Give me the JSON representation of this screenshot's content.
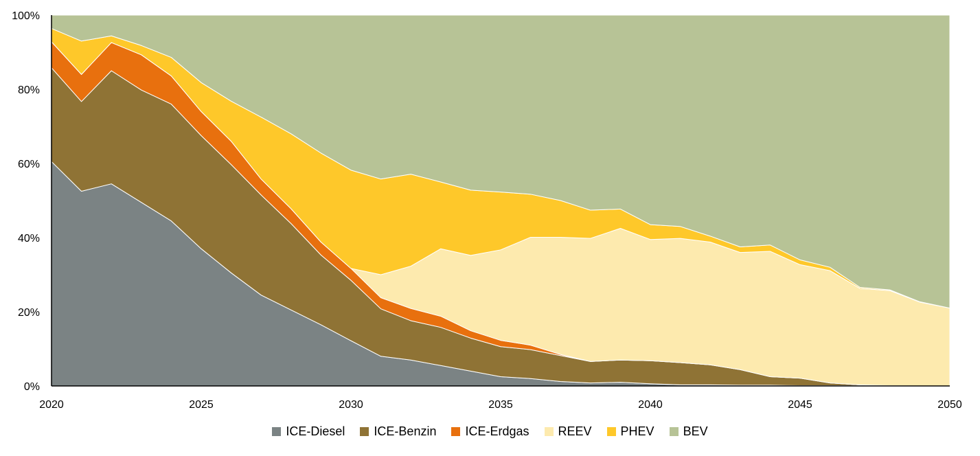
{
  "chart_data": {
    "type": "area",
    "stacked": true,
    "title": "",
    "xlabel": "",
    "ylabel": "",
    "x": [
      2020,
      2021,
      2022,
      2023,
      2024,
      2025,
      2026,
      2027,
      2028,
      2029,
      2030,
      2031,
      2032,
      2033,
      2034,
      2035,
      2036,
      2037,
      2038,
      2039,
      2040,
      2041,
      2042,
      2043,
      2044,
      2045,
      2046,
      2047,
      2048,
      2049,
      2050
    ],
    "x_ticks": [
      2020,
      2025,
      2030,
      2035,
      2040,
      2045,
      2050
    ],
    "x_tick_labels": [
      "2020",
      "2025",
      "2030",
      "2035",
      "2040",
      "2045",
      "2050"
    ],
    "y_ticks": [
      0,
      20,
      40,
      60,
      80,
      100
    ],
    "y_tick_labels": [
      "0%",
      "20%",
      "40%",
      "60%",
      "80%",
      "100%"
    ],
    "ylim": [
      0,
      100
    ],
    "xlim": [
      2020,
      2050
    ],
    "grid": false,
    "legend_position": "bottom",
    "series": [
      {
        "name": "ICE-Diesel",
        "color": "#7b8384",
        "values": [
          60.5,
          52.5,
          54.5,
          49.5,
          44.5,
          37,
          30.5,
          24.5,
          20.5,
          16.5,
          12.2,
          8,
          7,
          5.5,
          4,
          2.5,
          2,
          1.2,
          0.8,
          1,
          0.6,
          0.3,
          0.3,
          0.2,
          0.2,
          0.1,
          0.1,
          0.1,
          0,
          0,
          0
        ]
      },
      {
        "name": "ICE-Benzin",
        "color": "#8f7335",
        "values": [
          25.3,
          24.2,
          30.5,
          30.3,
          31.5,
          30.5,
          29.2,
          27,
          23.3,
          18.8,
          16.3,
          12.8,
          10.6,
          10.3,
          8.9,
          8.1,
          7.8,
          7,
          5.8,
          6,
          6.2,
          6,
          5.4,
          4.2,
          2.3,
          2,
          0.7,
          0.2,
          0.1,
          0,
          0
        ]
      },
      {
        "name": "ICE-Erdgas",
        "color": "#e8700e",
        "values": [
          7,
          7.3,
          7.6,
          9.5,
          7.6,
          6.5,
          6.3,
          4.3,
          4,
          3.5,
          3.2,
          3,
          3.3,
          3,
          2,
          1.7,
          1.2,
          0.3,
          0,
          0,
          0,
          0,
          0,
          0,
          0,
          0,
          0,
          0,
          0,
          0,
          0
        ]
      },
      {
        "name": "REEV",
        "color": "#fdeaae",
        "values": [
          0,
          0,
          0,
          0,
          0,
          0,
          0,
          0,
          0,
          0,
          0,
          6.2,
          11.4,
          18.2,
          20.3,
          24.4,
          29.1,
          31.6,
          33.2,
          35.5,
          32.7,
          33.5,
          33.1,
          31.6,
          33.8,
          30.6,
          30.3,
          26,
          25.6,
          22.6,
          21
        ]
      },
      {
        "name": "PHEV",
        "color": "#fec82a",
        "values": [
          3.6,
          9,
          1.8,
          2.5,
          5,
          7.8,
          10.8,
          16.7,
          20.2,
          24,
          26.5,
          25.8,
          24.8,
          18,
          17.6,
          15.6,
          11.6,
          9.9,
          7.6,
          5.2,
          4,
          3.2,
          1.6,
          1.5,
          1.7,
          1.3,
          0.9,
          0.3,
          0.2,
          0.1,
          0
        ]
      },
      {
        "name": "BEV",
        "color": "#b7c396",
        "values": [
          3.6,
          7,
          5.6,
          8.2,
          11.4,
          18.2,
          23.2,
          27.5,
          32,
          37.2,
          41.8,
          44.2,
          42.9,
          45,
          47.2,
          47.7,
          48.3,
          50,
          52.6,
          52.3,
          56.5,
          57,
          59.6,
          62.5,
          62,
          66,
          68,
          73.4,
          74.1,
          77.3,
          79
        ]
      }
    ]
  }
}
